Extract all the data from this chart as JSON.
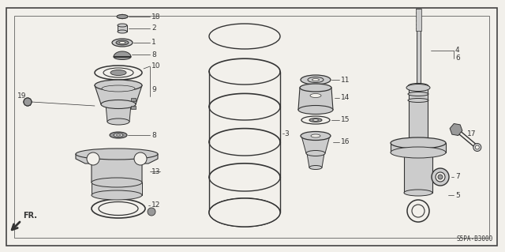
{
  "bg_color": "#f2f0eb",
  "border_color": "#444444",
  "line_color": "#333333",
  "part_color": "#999999",
  "dark_color": "#555555",
  "light_color": "#cccccc",
  "white_color": "#f8f8f8",
  "diagram_code": "S5PA-B3000",
  "fr_label": "FR."
}
